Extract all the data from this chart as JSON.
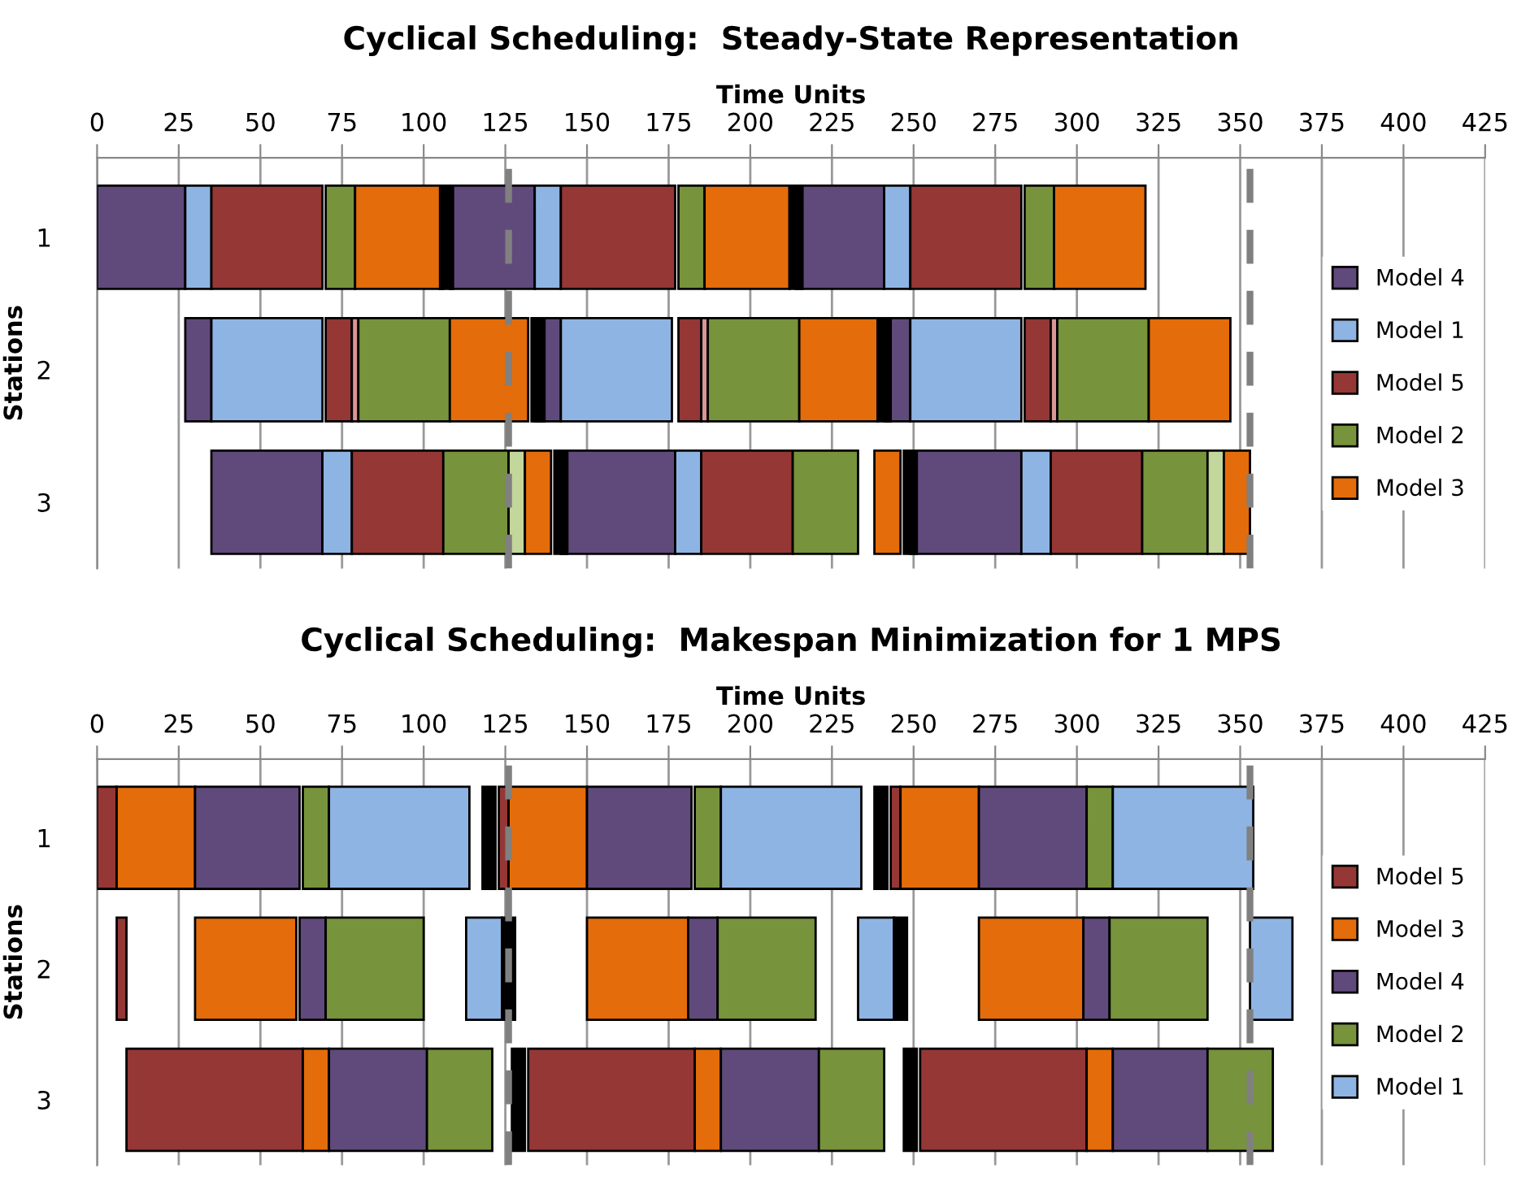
{
  "chart_data": [
    {
      "type": "bar",
      "orientation": "horizontal",
      "title": "Cyclical Scheduling:  Steady-State Representation",
      "xlabel": "Time Units",
      "ylabel": "Stations",
      "categories": [
        "1",
        "2",
        "3"
      ],
      "xlim": [
        0,
        425
      ],
      "xticks": [
        0,
        25,
        50,
        75,
        100,
        125,
        150,
        175,
        200,
        225,
        250,
        275,
        300,
        325,
        350,
        375,
        400,
        425
      ],
      "grid": "x",
      "legend": "right",
      "ref_lines": [
        {
          "axis": "x",
          "value": 126,
          "color": "#808080",
          "line_style": "dashed"
        },
        {
          "axis": "x",
          "value": 353,
          "color": "#808080",
          "line_style": "dashed"
        }
      ],
      "series": [
        {
          "name": "Model 4",
          "color": "#604a7b",
          "base": [
            0,
            27,
            35
          ],
          "values": [
            27,
            8,
            34
          ]
        },
        {
          "color": "#604a7b",
          "base": [
            108,
            134,
            142
          ],
          "values": [
            26,
            8,
            35
          ]
        },
        {
          "color": "#604a7b",
          "base": [
            214,
            241,
            249
          ],
          "values": [
            27,
            8,
            34
          ]
        },
        {
          "name": "Model 1",
          "color": "#8eb4e3",
          "base": [
            27,
            35,
            69
          ],
          "values": [
            8,
            34,
            9
          ]
        },
        {
          "color": "#8eb4e3",
          "base": [
            134,
            142,
            177
          ],
          "values": [
            8,
            34,
            8
          ]
        },
        {
          "color": "#8eb4e3",
          "base": [
            241,
            249,
            283
          ],
          "values": [
            8,
            34,
            9
          ]
        },
        {
          "name": "Model 5",
          "color": "#953735",
          "base": [
            35,
            70,
            78
          ],
          "values": [
            34,
            8,
            28
          ]
        },
        {
          "color": "#953735",
          "base": [
            142,
            178,
            185
          ],
          "values": [
            35,
            7,
            28
          ]
        },
        {
          "color": "#953735",
          "base": [
            249,
            284,
            292
          ],
          "values": [
            34,
            8,
            28
          ]
        },
        {
          "color": "#d99694",
          "base": [
            null,
            78,
            null
          ],
          "values": [
            null,
            2,
            null
          ]
        },
        {
          "color": "#d99694",
          "base": [
            null,
            185,
            null
          ],
          "values": [
            null,
            2,
            null
          ]
        },
        {
          "color": "#d99694",
          "base": [
            null,
            292,
            null
          ],
          "values": [
            null,
            2,
            null
          ]
        },
        {
          "name": "Model 2",
          "color": "#77933c",
          "base": [
            70,
            80,
            106
          ],
          "values": [
            9,
            28,
            20
          ]
        },
        {
          "color": "#77933c",
          "base": [
            178,
            187,
            213
          ],
          "values": [
            8,
            28,
            20
          ]
        },
        {
          "color": "#77933c",
          "base": [
            284,
            294,
            320
          ],
          "values": [
            9,
            28,
            20
          ]
        },
        {
          "color": "#c3d69b",
          "base": [
            null,
            null,
            126
          ],
          "values": [
            null,
            null,
            5
          ]
        },
        {
          "color": "#c3d69b",
          "base": [
            null,
            null,
            340
          ],
          "values": [
            null,
            null,
            5
          ]
        },
        {
          "name": "Model 3",
          "color": "#e46c0a",
          "base": [
            79,
            108,
            131
          ],
          "values": [
            27,
            24,
            8
          ]
        },
        {
          "color": "#e46c0a",
          "base": [
            186,
            215,
            238
          ],
          "values": [
            26,
            24,
            8
          ]
        },
        {
          "color": "#e46c0a",
          "base": [
            293,
            322,
            345
          ],
          "values": [
            28,
            25,
            8
          ]
        },
        {
          "color": "#000000",
          "base": [
            105,
            133,
            140
          ],
          "values": [
            4,
            4,
            4
          ]
        },
        {
          "color": "#000000",
          "base": [
            212,
            239,
            247
          ],
          "values": [
            4,
            4,
            4
          ]
        }
      ]
    },
    {
      "type": "bar",
      "orientation": "horizontal",
      "title": "Cyclical Scheduling:  Makespan Minimization for 1 MPS",
      "xlabel": "Time Units",
      "ylabel": "Stations",
      "categories": [
        "1",
        "2",
        "3"
      ],
      "xlim": [
        0,
        425
      ],
      "xticks": [
        0,
        25,
        50,
        75,
        100,
        125,
        150,
        175,
        200,
        225,
        250,
        275,
        300,
        325,
        350,
        375,
        400,
        425
      ],
      "grid": "x",
      "legend": "right",
      "ref_lines": [
        {
          "axis": "x",
          "value": 126,
          "color": "#808080",
          "line_style": "dashed"
        },
        {
          "axis": "x",
          "value": 353,
          "color": "#808080",
          "line_style": "dashed"
        }
      ],
      "series": [
        {
          "name": "Model 5",
          "color": "#953735",
          "base": [
            0,
            6,
            9
          ],
          "values": [
            6,
            3,
            54
          ]
        },
        {
          "color": "#953735",
          "base": [
            123,
            null,
            132
          ],
          "values": [
            3,
            null,
            51
          ]
        },
        {
          "color": "#953735",
          "base": [
            243,
            null,
            252
          ],
          "values": [
            3,
            null,
            51
          ]
        },
        {
          "name": "Model 3",
          "color": "#e46c0a",
          "base": [
            6,
            30,
            63
          ],
          "values": [
            24,
            31,
            8
          ]
        },
        {
          "color": "#e46c0a",
          "base": [
            126,
            150,
            183
          ],
          "values": [
            24,
            31,
            8
          ]
        },
        {
          "color": "#e46c0a",
          "base": [
            246,
            270,
            303
          ],
          "values": [
            24,
            32,
            8
          ]
        },
        {
          "name": "Model 4",
          "color": "#604a7b",
          "base": [
            30,
            62,
            71
          ],
          "values": [
            32,
            8,
            30
          ]
        },
        {
          "color": "#604a7b",
          "base": [
            150,
            181,
            191
          ],
          "values": [
            32,
            9,
            30
          ]
        },
        {
          "color": "#604a7b",
          "base": [
            270,
            302,
            311
          ],
          "values": [
            33,
            8,
            29
          ]
        },
        {
          "name": "Model 2",
          "color": "#77933c",
          "base": [
            63,
            70,
            101
          ],
          "values": [
            8,
            30,
            20
          ]
        },
        {
          "color": "#77933c",
          "base": [
            183,
            190,
            221
          ],
          "values": [
            8,
            30,
            20
          ]
        },
        {
          "color": "#77933c",
          "base": [
            303,
            310,
            340
          ],
          "values": [
            8,
            30,
            20
          ]
        },
        {
          "name": "Model 1",
          "color": "#8eb4e3",
          "base": [
            71,
            113,
            null
          ],
          "values": [
            43,
            11,
            null
          ]
        },
        {
          "color": "#8eb4e3",
          "base": [
            191,
            233,
            null
          ],
          "values": [
            43,
            11,
            null
          ]
        },
        {
          "color": "#8eb4e3",
          "base": [
            311,
            353,
            null
          ],
          "values": [
            43,
            13,
            null
          ]
        },
        {
          "color": "#000000",
          "base": [
            118,
            124,
            127
          ],
          "values": [
            4,
            4,
            4
          ]
        },
        {
          "color": "#000000",
          "base": [
            238,
            244,
            247
          ],
          "values": [
            4,
            4,
            4
          ]
        }
      ]
    }
  ]
}
